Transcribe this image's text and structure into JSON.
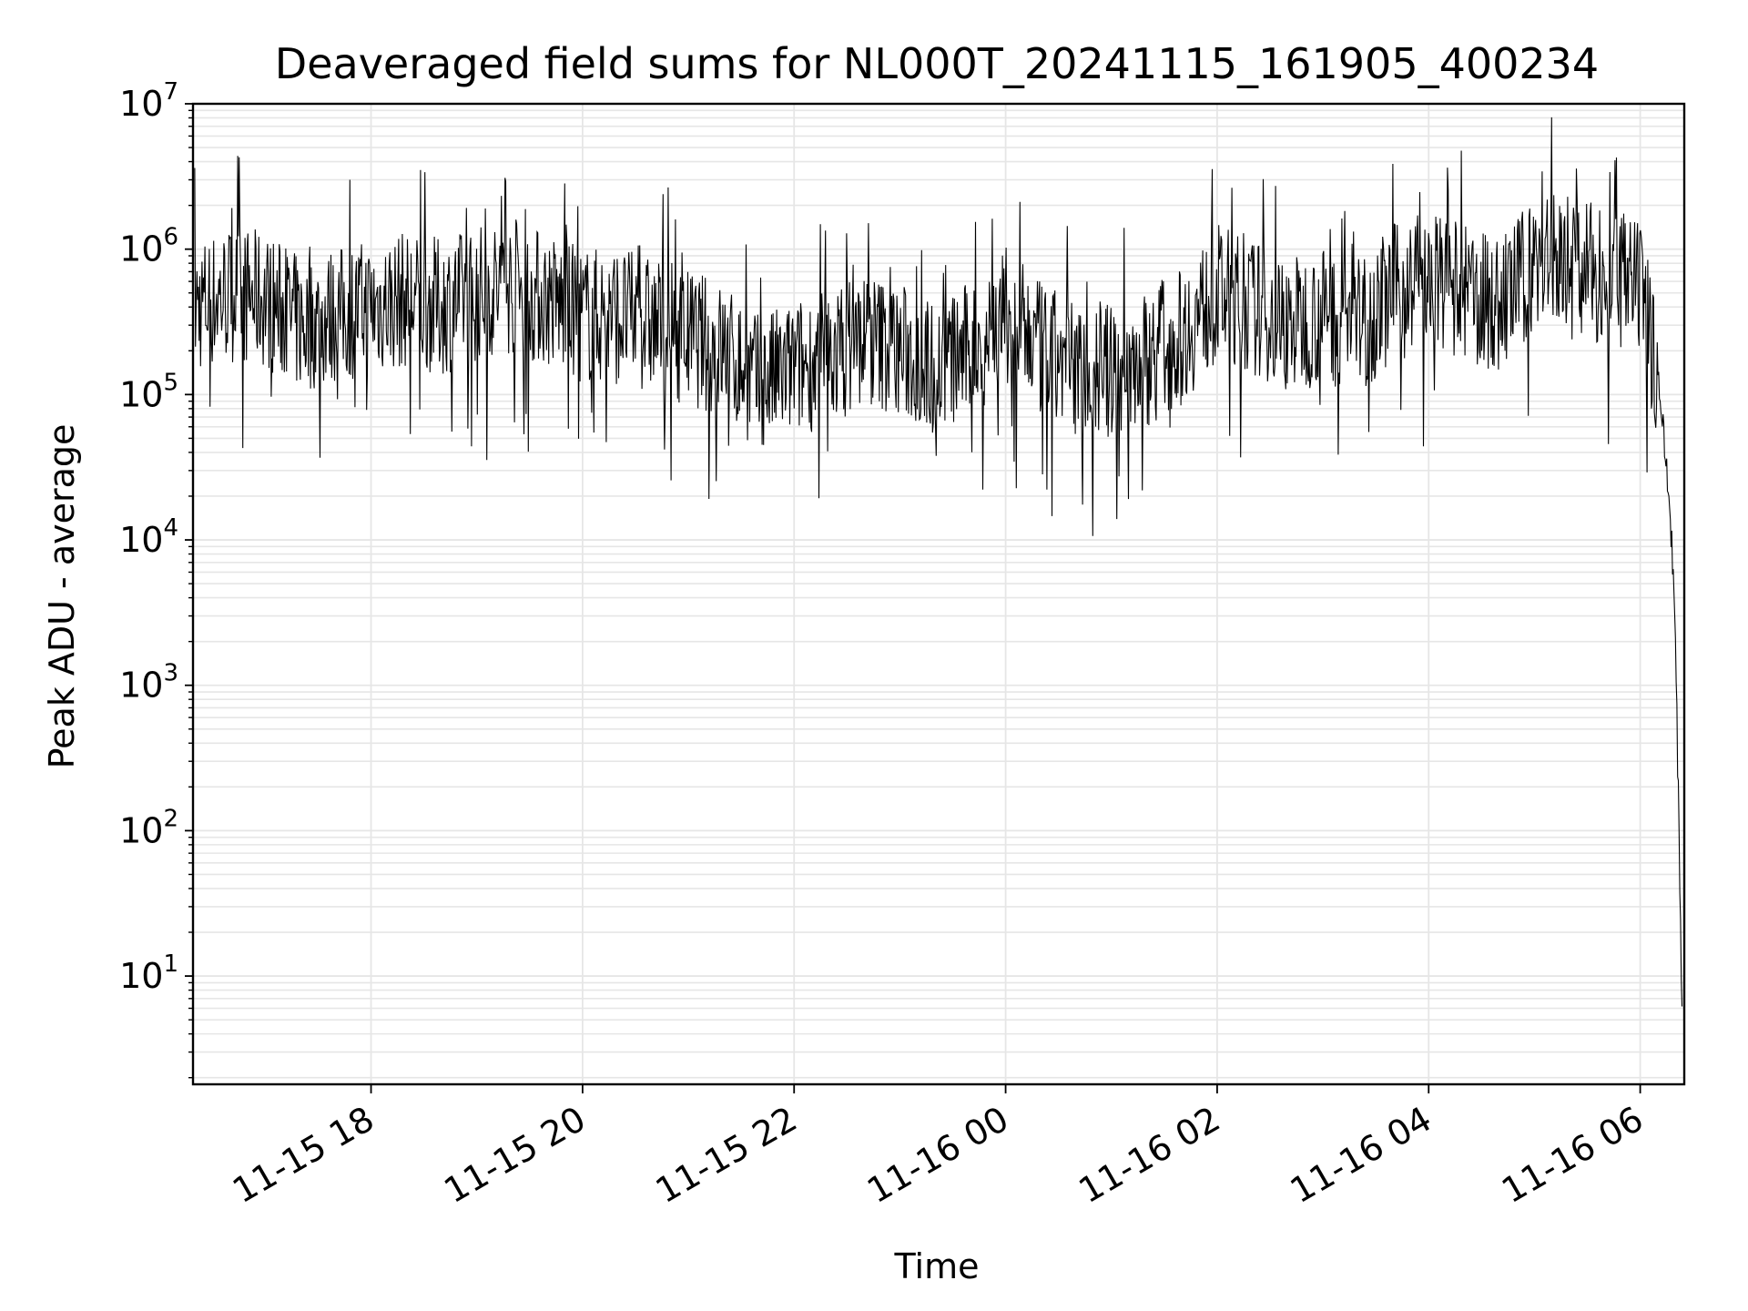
{
  "chart_data": {
    "type": "line",
    "title": "Deaveraged field sums for NL000T_20241115_161905_400234",
    "xlabel": "Time",
    "ylabel": "Peak ADU - average",
    "yscale": "log",
    "ylim": [
      1.8,
      10000000
    ],
    "xlim": [
      "2024-11-15T16:19",
      "2024-11-16T06:25"
    ],
    "grid": true,
    "line_color": "#000000",
    "grid_color": "#e6e6e6",
    "xticks": [
      {
        "t": "2024-11-15T18:00",
        "label": "11-15 18"
      },
      {
        "t": "2024-11-15T20:00",
        "label": "11-15 20"
      },
      {
        "t": "2024-11-15T22:00",
        "label": "11-15 22"
      },
      {
        "t": "2024-11-16T00:00",
        "label": "11-16 00"
      },
      {
        "t": "2024-11-16T02:00",
        "label": "11-16 02"
      },
      {
        "t": "2024-11-16T04:00",
        "label": "11-16 04"
      },
      {
        "t": "2024-11-16T06:00",
        "label": "11-16 06"
      }
    ],
    "yticks": [
      {
        "value": 10,
        "base": "10",
        "exp": "1"
      },
      {
        "value": 100,
        "base": "10",
        "exp": "2"
      },
      {
        "value": 1000,
        "base": "10",
        "exp": "3"
      },
      {
        "value": 10000,
        "base": "10",
        "exp": "4"
      },
      {
        "value": 100000,
        "base": "10",
        "exp": "5"
      },
      {
        "value": 1000000,
        "base": "10",
        "exp": "6"
      },
      {
        "value": 10000000,
        "base": "10",
        "exp": "7"
      }
    ],
    "series": [
      {
        "x": [
          "2024-11-15T16:20",
          "2024-11-15T16:40",
          "2024-11-15T17:00",
          "2024-11-15T17:20",
          "2024-11-15T17:40",
          "2024-11-15T18:00",
          "2024-11-15T18:20",
          "2024-11-15T18:40",
          "2024-11-15T19:00",
          "2024-11-15T19:20",
          "2024-11-15T19:40",
          "2024-11-15T20:00",
          "2024-11-15T20:20",
          "2024-11-15T20:40",
          "2024-11-15T21:00",
          "2024-11-15T21:20",
          "2024-11-15T21:40",
          "2024-11-15T22:00",
          "2024-11-15T22:20",
          "2024-11-15T22:40",
          "2024-11-15T23:00",
          "2024-11-15T23:20",
          "2024-11-15T23:40",
          "2024-11-16T00:00",
          "2024-11-16T00:20",
          "2024-11-16T00:40",
          "2024-11-16T01:00",
          "2024-11-16T01:20",
          "2024-11-16T01:40",
          "2024-11-16T02:00",
          "2024-11-16T02:20",
          "2024-11-16T02:40",
          "2024-11-16T03:00",
          "2024-11-16T03:20",
          "2024-11-16T03:40",
          "2024-11-16T04:00",
          "2024-11-16T04:20",
          "2024-11-16T04:40",
          "2024-11-16T05:00",
          "2024-11-16T05:20",
          "2024-11-16T05:40",
          "2024-11-16T06:00",
          "2024-11-16T06:10",
          "2024-11-16T06:15",
          "2024-11-16T06:18",
          "2024-11-16T06:20",
          "2024-11-16T06:22",
          "2024-11-16T06:24"
        ],
        "y": [
          400000,
          500000,
          450000,
          300000,
          350000,
          400000,
          450000,
          400000,
          500000,
          550000,
          450000,
          350000,
          350000,
          300000,
          250000,
          200000,
          120000,
          150000,
          180000,
          250000,
          200000,
          150000,
          200000,
          350000,
          200000,
          150000,
          140000,
          180000,
          250000,
          500000,
          400000,
          300000,
          350000,
          300000,
          500000,
          600000,
          500000,
          400000,
          800000,
          900000,
          600000,
          500000,
          150000,
          30000,
          10000,
          2000,
          100,
          4
        ]
      }
    ]
  }
}
